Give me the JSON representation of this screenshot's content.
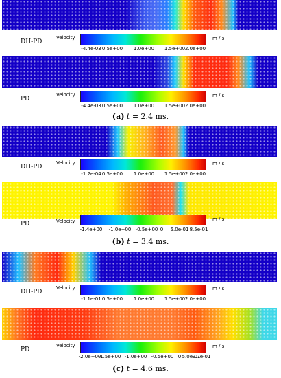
{
  "colorbar": {
    "variable": "Velocity",
    "unit": "m / s"
  },
  "subfigures": [
    {
      "caption_letter": "(a)",
      "caption_rest": " = 2.4 ms.",
      "caption_t": "t",
      "rows": [
        {
          "model": "DH-PD",
          "ticks": [
            "-4.4e-03",
            "0.5e+00",
            "1.0e+00",
            "1.5e+00",
            "2.0e+00"
          ]
        },
        {
          "model": "PD",
          "ticks": [
            "-4.4e-03",
            "0.5e+00",
            "1.0e+00",
            "1.5e+00",
            "2.0e+00"
          ]
        }
      ]
    },
    {
      "caption_letter": "(b)",
      "caption_rest": " = 3.4 ms.",
      "caption_t": "t",
      "rows": [
        {
          "model": "DH-PD",
          "ticks": [
            "-1.2e-04",
            "0.5e+00",
            "1.0e+00",
            "1.5e+00",
            "2.0e+00"
          ]
        },
        {
          "model": "PD",
          "ticks": [
            "-1.4e+00",
            "-1.0e+00",
            "-0.5e+00",
            "0",
            "5.0e-01",
            "8.5e-01"
          ]
        }
      ]
    },
    {
      "caption_letter": "(c)",
      "caption_rest": " = 4.6 ms.",
      "caption_t": "t",
      "rows": [
        {
          "model": "DH-PD",
          "ticks": [
            "-1.1e-01",
            "0.5e+00",
            "1.0e+00",
            "1.5e+00",
            "2.0e+00"
          ]
        },
        {
          "model": "PD",
          "ticks": [
            "-2.0e+00",
            "-1.5e+00",
            "-1.0e+00",
            "-0.5e+00",
            "0",
            "5.0e-01",
            "9.7e-01"
          ]
        }
      ]
    }
  ]
}
